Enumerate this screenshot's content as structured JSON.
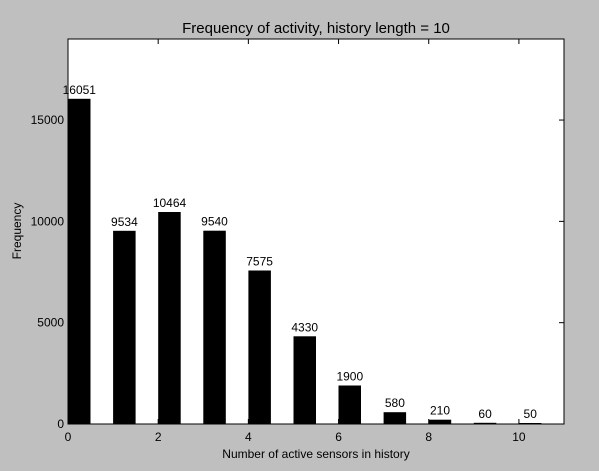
{
  "chart_data": {
    "type": "bar",
    "title": "Frequency of activity, history length = 10",
    "xlabel": "Number of active sensors in history",
    "ylabel": "Frequency",
    "categories": [
      0,
      1,
      2,
      3,
      4,
      5,
      6,
      7,
      8,
      9,
      10
    ],
    "values": [
      16051,
      9534,
      10464,
      9540,
      7575,
      4330,
      1900,
      580,
      210,
      60,
      50
    ],
    "data_labels": [
      "16051",
      "9534",
      "10464",
      "9540",
      "7575",
      "4330",
      "1900",
      "580",
      "210",
      "60",
      "50"
    ],
    "xlim": [
      0,
      11
    ],
    "ylim": [
      0,
      19000
    ],
    "bar_width": 0.5,
    "xticks": [
      0,
      2,
      4,
      6,
      8,
      10
    ],
    "xtick_labels": [
      "0",
      "2",
      "4",
      "6",
      "8",
      "10"
    ],
    "yticks": [
      0,
      5000,
      10000,
      15000
    ],
    "ytick_labels": [
      "0",
      "5000",
      "10000",
      "15000"
    ],
    "grid": false,
    "legend": "none",
    "colors": {
      "bar": "#000000",
      "plot_background": "#ffffff",
      "figure_background": "#bfbfbf"
    }
  }
}
